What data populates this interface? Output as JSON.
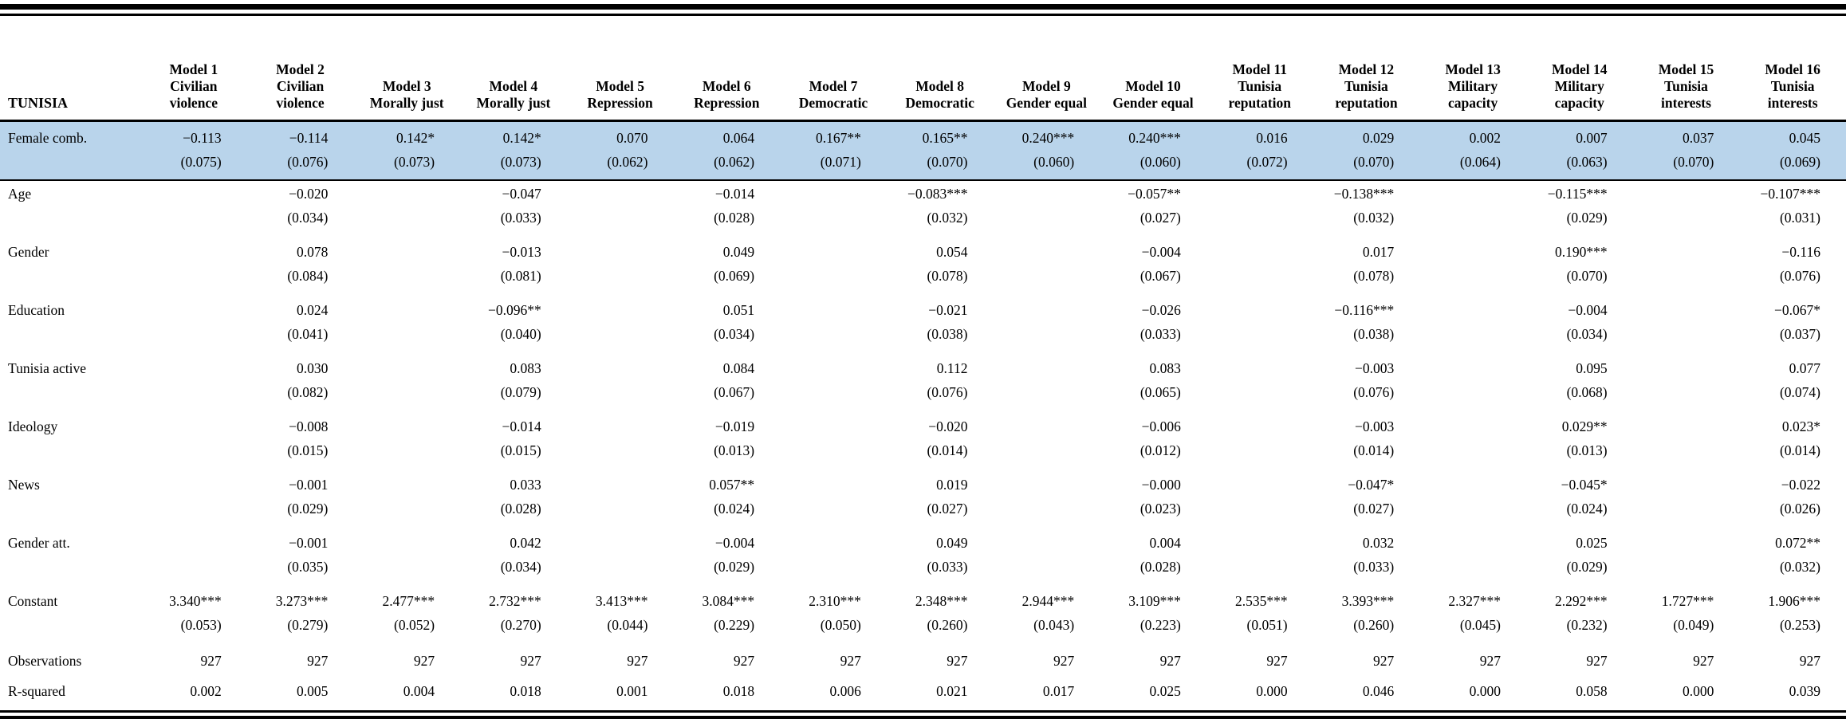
{
  "table": {
    "corner_label": "TUNISIA",
    "highlight_color": "#b9d4eb",
    "columns": [
      {
        "model": "Model 1",
        "outcome": "Civilian violence"
      },
      {
        "model": "Model 2",
        "outcome": "Civilian violence"
      },
      {
        "model": "Model 3",
        "outcome": "Morally just"
      },
      {
        "model": "Model 4",
        "outcome": "Morally just"
      },
      {
        "model": "Model 5",
        "outcome": "Repression"
      },
      {
        "model": "Model 6",
        "outcome": "Repression"
      },
      {
        "model": "Model 7",
        "outcome": "Democratic"
      },
      {
        "model": "Model 8",
        "outcome": "Democratic"
      },
      {
        "model": "Model 9",
        "outcome": "Gender equal"
      },
      {
        "model": "Model 10",
        "outcome": "Gender equal"
      },
      {
        "model": "Model 11",
        "outcome": "Tunisia reputation"
      },
      {
        "model": "Model 12",
        "outcome": "Tunisia reputation"
      },
      {
        "model": "Model 13",
        "outcome": "Military capacity"
      },
      {
        "model": "Model 14",
        "outcome": "Military capacity"
      },
      {
        "model": "Model 15",
        "outcome": "Tunisia interests"
      },
      {
        "model": "Model 16",
        "outcome": "Tunisia interests"
      }
    ],
    "rows": [
      {
        "label": "Female comb.",
        "highlight": true,
        "coefs": [
          "−0.113",
          "−0.114",
          "0.142*",
          "0.142*",
          "0.070",
          "0.064",
          "0.167**",
          "0.165**",
          "0.240***",
          "0.240***",
          "0.016",
          "0.029",
          "0.002",
          "0.007",
          "0.037",
          "0.045"
        ],
        "ses": [
          "(0.075)",
          "(0.076)",
          "(0.073)",
          "(0.073)",
          "(0.062)",
          "(0.062)",
          "(0.071)",
          "(0.070)",
          "(0.060)",
          "(0.060)",
          "(0.072)",
          "(0.070)",
          "(0.064)",
          "(0.063)",
          "(0.070)",
          "(0.069)"
        ]
      },
      {
        "label": "Age",
        "highlight": false,
        "coefs": [
          "",
          "−0.020",
          "",
          "−0.047",
          "",
          "−0.014",
          "",
          "−0.083***",
          "",
          "−0.057**",
          "",
          "−0.138***",
          "",
          "−0.115***",
          "",
          "−0.107***"
        ],
        "ses": [
          "",
          "(0.034)",
          "",
          "(0.033)",
          "",
          "(0.028)",
          "",
          "(0.032)",
          "",
          "(0.027)",
          "",
          "(0.032)",
          "",
          "(0.029)",
          "",
          "(0.031)"
        ]
      },
      {
        "label": "Gender",
        "highlight": false,
        "coefs": [
          "",
          "0.078",
          "",
          "−0.013",
          "",
          "0.049",
          "",
          "0.054",
          "",
          "−0.004",
          "",
          "0.017",
          "",
          "0.190***",
          "",
          "−0.116"
        ],
        "ses": [
          "",
          "(0.084)",
          "",
          "(0.081)",
          "",
          "(0.069)",
          "",
          "(0.078)",
          "",
          "(0.067)",
          "",
          "(0.078)",
          "",
          "(0.070)",
          "",
          "(0.076)"
        ]
      },
      {
        "label": "Education",
        "highlight": false,
        "coefs": [
          "",
          "0.024",
          "",
          "−0.096**",
          "",
          "0.051",
          "",
          "−0.021",
          "",
          "−0.026",
          "",
          "−0.116***",
          "",
          "−0.004",
          "",
          "−0.067*"
        ],
        "ses": [
          "",
          "(0.041)",
          "",
          "(0.040)",
          "",
          "(0.034)",
          "",
          "(0.038)",
          "",
          "(0.033)",
          "",
          "(0.038)",
          "",
          "(0.034)",
          "",
          "(0.037)"
        ]
      },
      {
        "label": "Tunisia active",
        "highlight": false,
        "coefs": [
          "",
          "0.030",
          "",
          "0.083",
          "",
          "0.084",
          "",
          "0.112",
          "",
          "0.083",
          "",
          "−0.003",
          "",
          "0.095",
          "",
          "0.077"
        ],
        "ses": [
          "",
          "(0.082)",
          "",
          "(0.079)",
          "",
          "(0.067)",
          "",
          "(0.076)",
          "",
          "(0.065)",
          "",
          "(0.076)",
          "",
          "(0.068)",
          "",
          "(0.074)"
        ]
      },
      {
        "label": "Ideology",
        "highlight": false,
        "coefs": [
          "",
          "−0.008",
          "",
          "−0.014",
          "",
          "−0.019",
          "",
          "−0.020",
          "",
          "−0.006",
          "",
          "−0.003",
          "",
          "0.029**",
          "",
          "0.023*"
        ],
        "ses": [
          "",
          "(0.015)",
          "",
          "(0.015)",
          "",
          "(0.013)",
          "",
          "(0.014)",
          "",
          "(0.012)",
          "",
          "(0.014)",
          "",
          "(0.013)",
          "",
          "(0.014)"
        ]
      },
      {
        "label": "News",
        "highlight": false,
        "coefs": [
          "",
          "−0.001",
          "",
          "0.033",
          "",
          "0.057**",
          "",
          "0.019",
          "",
          "−0.000",
          "",
          "−0.047*",
          "",
          "−0.045*",
          "",
          "−0.022"
        ],
        "ses": [
          "",
          "(0.029)",
          "",
          "(0.028)",
          "",
          "(0.024)",
          "",
          "(0.027)",
          "",
          "(0.023)",
          "",
          "(0.027)",
          "",
          "(0.024)",
          "",
          "(0.026)"
        ]
      },
      {
        "label": "Gender att.",
        "highlight": false,
        "coefs": [
          "",
          "−0.001",
          "",
          "0.042",
          "",
          "−0.004",
          "",
          "0.049",
          "",
          "0.004",
          "",
          "0.032",
          "",
          "0.025",
          "",
          "0.072**"
        ],
        "ses": [
          "",
          "(0.035)",
          "",
          "(0.034)",
          "",
          "(0.029)",
          "",
          "(0.033)",
          "",
          "(0.028)",
          "",
          "(0.033)",
          "",
          "(0.029)",
          "",
          "(0.032)"
        ]
      },
      {
        "label": "Constant",
        "highlight": false,
        "coefs": [
          "3.340***",
          "3.273***",
          "2.477***",
          "2.732***",
          "3.413***",
          "3.084***",
          "2.310***",
          "2.348***",
          "2.944***",
          "3.109***",
          "2.535***",
          "3.393***",
          "2.327***",
          "2.292***",
          "1.727***",
          "1.906***"
        ],
        "ses": [
          "(0.053)",
          "(0.279)",
          "(0.052)",
          "(0.270)",
          "(0.044)",
          "(0.229)",
          "(0.050)",
          "(0.260)",
          "(0.043)",
          "(0.223)",
          "(0.051)",
          "(0.260)",
          "(0.045)",
          "(0.232)",
          "(0.049)",
          "(0.253)"
        ]
      }
    ],
    "stats": [
      {
        "label": "Observations",
        "values": [
          "927",
          "927",
          "927",
          "927",
          "927",
          "927",
          "927",
          "927",
          "927",
          "927",
          "927",
          "927",
          "927",
          "927",
          "927",
          "927"
        ]
      },
      {
        "label": "R-squared",
        "values": [
          "0.002",
          "0.005",
          "0.004",
          "0.018",
          "0.001",
          "0.018",
          "0.006",
          "0.021",
          "0.017",
          "0.025",
          "0.000",
          "0.046",
          "0.000",
          "0.058",
          "0.000",
          "0.039"
        ]
      }
    ]
  }
}
